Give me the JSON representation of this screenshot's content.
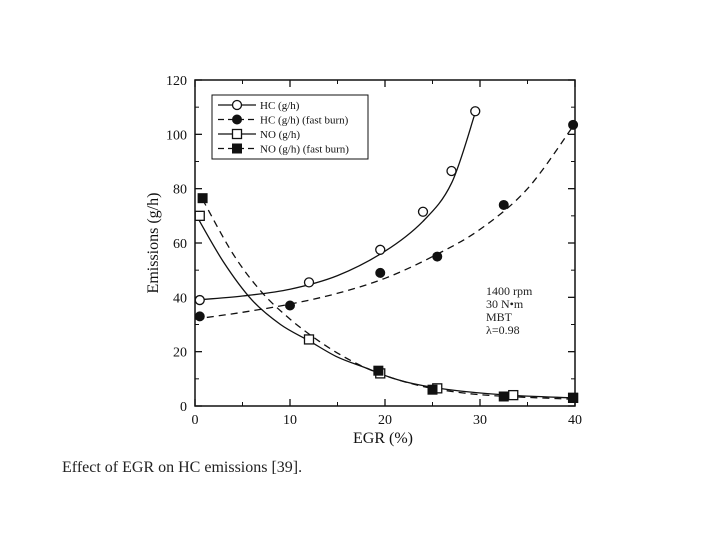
{
  "caption": "Effect of EGR on HC emissions [39].",
  "chart_data": {
    "type": "scatter",
    "xlabel": "EGR (%)",
    "ylabel": "Emissions (g/h)",
    "xlim": [
      0,
      40
    ],
    "ylim": [
      0,
      120
    ],
    "xticks": [
      0,
      10,
      20,
      30,
      40
    ],
    "yticks": [
      0,
      20,
      40,
      60,
      80,
      100,
      120
    ],
    "grid": false,
    "legend_position": "top-left",
    "series": [
      {
        "name": "HC (g/h)",
        "marker": "open-circle",
        "line": "solid",
        "color": "#111111",
        "points": [
          [
            0.5,
            39
          ],
          [
            12,
            45.5
          ],
          [
            19.5,
            57.5
          ],
          [
            24,
            71.5
          ],
          [
            27,
            86.5
          ],
          [
            29.5,
            108.5
          ]
        ],
        "fit": [
          [
            0,
            39
          ],
          [
            5,
            40.5
          ],
          [
            10,
            43
          ],
          [
            15,
            48
          ],
          [
            20,
            57
          ],
          [
            24,
            68
          ],
          [
            27,
            82
          ],
          [
            29.5,
            108
          ]
        ]
      },
      {
        "name": "HC (g/h) (fast burn)",
        "marker": "filled-circle",
        "line": "dashed",
        "color": "#111111",
        "points": [
          [
            0.5,
            33
          ],
          [
            10,
            37
          ],
          [
            19.5,
            49
          ],
          [
            25.5,
            55
          ],
          [
            32.5,
            74
          ],
          [
            39.8,
            103.5
          ]
        ],
        "fit": [
          [
            0,
            32
          ],
          [
            5,
            34.5
          ],
          [
            10,
            37.5
          ],
          [
            15,
            41.5
          ],
          [
            20,
            47
          ],
          [
            25,
            55
          ],
          [
            30,
            65
          ],
          [
            35,
            80
          ],
          [
            39.8,
            103
          ]
        ]
      },
      {
        "name": "NO (g/h)",
        "marker": "open-square",
        "line": "solid",
        "color": "#111111",
        "points": [
          [
            0.5,
            70
          ],
          [
            12,
            24.5
          ],
          [
            19.5,
            12
          ],
          [
            25.5,
            6.5
          ],
          [
            33.5,
            4
          ],
          [
            39.8,
            3
          ]
        ],
        "fit": [
          [
            0,
            71
          ],
          [
            3,
            53
          ],
          [
            6,
            39
          ],
          [
            9,
            30
          ],
          [
            12,
            24
          ],
          [
            15,
            18
          ],
          [
            18,
            14
          ],
          [
            21,
            10
          ],
          [
            24,
            7.5
          ],
          [
            28,
            5.5
          ],
          [
            33,
            4
          ],
          [
            39.8,
            3
          ]
        ]
      },
      {
        "name": "NO (g/h) (fast burn)",
        "marker": "filled-square",
        "line": "dashed",
        "color": "#111111",
        "points": [
          [
            0.8,
            76.5
          ],
          [
            19.3,
            13
          ],
          [
            25,
            6
          ],
          [
            32.5,
            3.5
          ],
          [
            39.8,
            3
          ]
        ],
        "fit": [
          [
            0.8,
            76
          ],
          [
            4,
            56
          ],
          [
            7,
            42
          ],
          [
            10,
            32
          ],
          [
            13,
            24
          ],
          [
            16,
            17.5
          ],
          [
            19,
            12.5
          ],
          [
            22,
            9
          ],
          [
            25,
            6.5
          ],
          [
            29,
            4.5
          ],
          [
            33,
            3.5
          ],
          [
            39.8,
            2.5
          ]
        ]
      }
    ],
    "annotation": [
      "1400 rpm",
      "30 N•m",
      "MBT",
      "λ=0.98"
    ]
  }
}
